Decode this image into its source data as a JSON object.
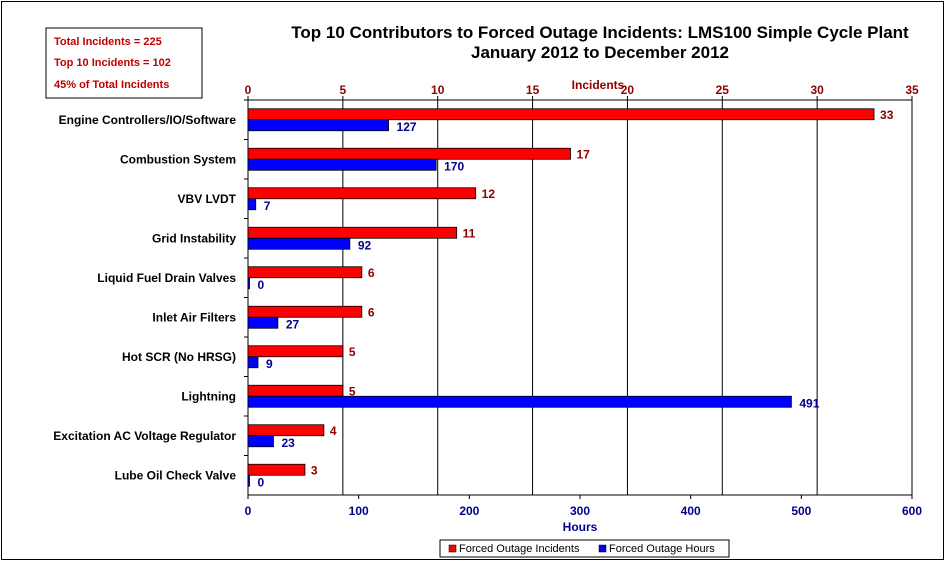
{
  "chart_data": {
    "type": "bar",
    "orientation": "horizontal",
    "title": "Top 10 Contributors to Forced Outage Incidents: LMS100 Simple Cycle Plant",
    "subtitle": "January 2012 to December 2012",
    "top_axis_label": "Incidents",
    "bottom_axis_label": "Hours",
    "top_axis_range": [
      0,
      35
    ],
    "top_axis_ticks": [
      "0",
      "5",
      "10",
      "15",
      "20",
      "25",
      "30",
      "35"
    ],
    "bottom_axis_range": [
      0,
      600
    ],
    "bottom_axis_ticks": [
      "0",
      "100",
      "200",
      "300",
      "400",
      "500",
      "600"
    ],
    "grid": "vertical, on top axis ticks",
    "legend_position": "bottom",
    "categories": [
      "Engine Controllers/IO/Software",
      "Combustion System",
      "VBV LVDT",
      "Grid Instability",
      "Liquid Fuel Drain Valves",
      "Inlet Air Filters",
      "Hot SCR (No HRSG)",
      "Lightning",
      "Excitation AC Voltage Regulator",
      "Lube Oil Check Valve"
    ],
    "series": [
      {
        "name": "Forced Outage Incidents",
        "axis": "top",
        "color": "#FF0000",
        "values": [
          33,
          17,
          12,
          11,
          6,
          6,
          5,
          5,
          4,
          3
        ]
      },
      {
        "name": "Forced Outage Hours",
        "axis": "bottom",
        "color": "#0000FF",
        "values": [
          127,
          170,
          7,
          92,
          0,
          27,
          9,
          491,
          23,
          0
        ]
      }
    ]
  },
  "notes": {
    "line1": "Total Incidents = 225",
    "line2": "Top 10 Incidents = 102",
    "line3": "45% of Total Incidents"
  }
}
